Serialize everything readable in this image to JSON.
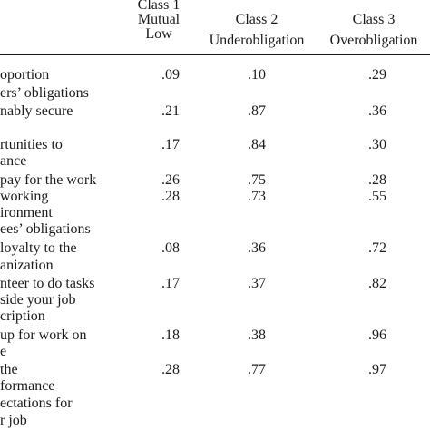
{
  "header": {
    "class1": [
      "Class 1",
      "Mutual",
      "Low"
    ],
    "class2": [
      "Class 2",
      "Underobligation"
    ],
    "class3": [
      "Class 3",
      "Overobligation"
    ]
  },
  "rows": [
    {
      "lines": [
        "oportion"
      ],
      "v": [
        "",
        "",
        ""
      ]
    },
    {
      "lines": [
        "ers’ obligations"
      ],
      "v": [
        ".09",
        ".10",
        ".29"
      ]
    },
    {
      "lines": [
        "nably secure"
      ],
      "v": [
        ".21",
        ".87",
        ".36"
      ]
    },
    {
      "lines": [
        "rtunities to",
        "ance"
      ],
      "v": [
        ".17",
        ".84",
        ".30"
      ]
    },
    {
      "lines": [
        "pay for the work"
      ],
      "v": [
        ".26",
        ".75",
        ".28"
      ]
    },
    {
      "lines": [
        "working",
        "ironment"
      ],
      "v": [
        ".28",
        ".73",
        ".55"
      ]
    },
    {
      "lines": [
        "ees’ obligations"
      ],
      "v": [
        "",
        "",
        ""
      ]
    },
    {
      "lines": [
        "loyalty to the",
        "anization"
      ],
      "v": [
        ".08",
        ".36",
        ".72"
      ]
    },
    {
      "lines": [
        "nteer to do tasks",
        "side your job",
        "cription"
      ],
      "v": [
        ".17",
        ".37",
        ".82"
      ]
    },
    {
      "lines": [
        "up for work on",
        "e"
      ],
      "v": [
        ".18",
        ".38",
        ".96"
      ]
    },
    {
      "lines": [
        "the",
        "formance",
        "ectations for",
        "r job"
      ],
      "v": [
        ".28",
        ".77",
        ".97"
      ]
    }
  ]
}
